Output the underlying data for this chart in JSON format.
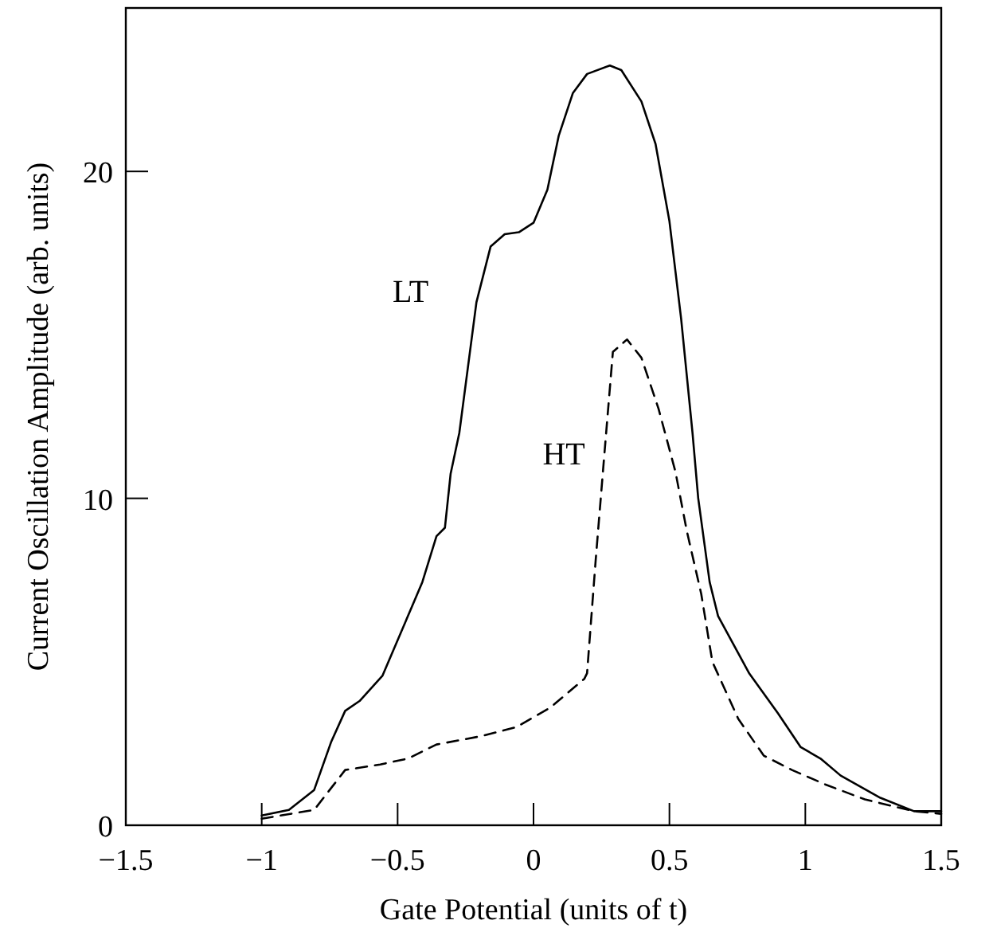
{
  "chart_data": {
    "type": "line",
    "xlabel": "Gate Potential (units of t)",
    "ylabel": "Current Oscillation Amplitude (arb. units)",
    "xlim": [
      -1.5,
      1.5
    ],
    "ylim": [
      0,
      25
    ],
    "xticks": [
      -1.5,
      -1,
      -0.5,
      0,
      0.5,
      1,
      1.5
    ],
    "yticks": [
      0,
      10,
      20
    ],
    "grid": false,
    "legend": false,
    "series": [
      {
        "name": "LT",
        "color": "#000000",
        "line_style": "solid",
        "x": [
          -1.0,
          -0.9,
          -0.807,
          -0.744,
          -0.693,
          -0.64,
          -0.556,
          -0.462,
          -0.409,
          -0.357,
          -0.326,
          -0.305,
          -0.273,
          -0.21,
          -0.158,
          -0.106,
          -0.054,
          0.0,
          0.051,
          0.093,
          0.145,
          0.197,
          0.281,
          0.323,
          0.397,
          0.449,
          0.5,
          0.543,
          0.585,
          0.606,
          0.648,
          0.679,
          0.794,
          0.899,
          0.983,
          1.056,
          1.13,
          1.276,
          1.4,
          1.5
        ],
        "values": [
          0.3,
          0.47,
          1.08,
          2.56,
          3.5,
          3.8,
          4.57,
          6.4,
          7.44,
          8.84,
          9.1,
          10.75,
          12.0,
          16.0,
          17.7,
          18.08,
          18.14,
          18.43,
          19.44,
          21.1,
          22.4,
          22.98,
          23.24,
          23.1,
          22.14,
          20.84,
          18.48,
          15.5,
          12.0,
          10.0,
          7.44,
          6.4,
          4.64,
          3.43,
          2.39,
          2.04,
          1.52,
          0.84,
          0.43,
          0.43
        ]
      },
      {
        "name": "HT",
        "color": "#000000",
        "line_style": "dashed",
        "x": [
          -1.0,
          -0.807,
          -0.693,
          -0.564,
          -0.462,
          -0.357,
          -0.19,
          -0.064,
          0.062,
          0.187,
          0.197,
          0.229,
          0.26,
          0.292,
          0.344,
          0.397,
          0.46,
          0.522,
          0.564,
          0.617,
          0.658,
          0.753,
          0.847,
          0.951,
          1.073,
          1.219,
          1.4,
          1.5
        ],
        "values": [
          0.2,
          0.47,
          1.69,
          1.86,
          2.04,
          2.47,
          2.73,
          3.0,
          3.6,
          4.48,
          4.65,
          8.14,
          11.28,
          14.48,
          14.86,
          14.3,
          12.74,
          10.82,
          9.0,
          7.08,
          5.0,
          3.26,
          2.13,
          1.69,
          1.25,
          0.79,
          0.43,
          0.35
        ]
      }
    ]
  }
}
